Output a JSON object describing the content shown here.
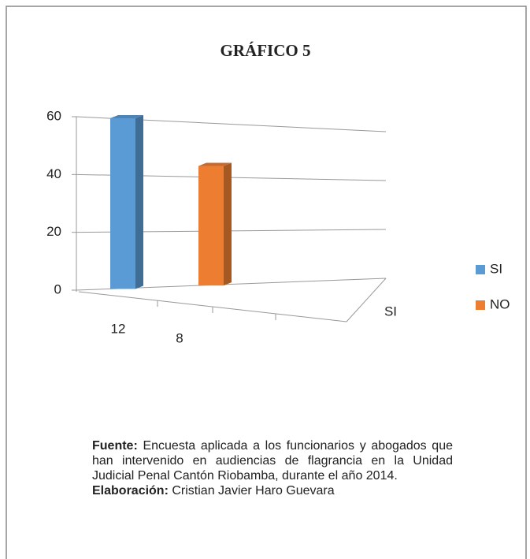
{
  "chart_data": {
    "type": "bar3d",
    "title": "GRÁFICO 5",
    "categories": [
      "12",
      "8"
    ],
    "depth_label": "SI",
    "series": [
      {
        "name": "SI",
        "color": "#5b9bd5",
        "values": [
          60,
          null
        ]
      },
      {
        "name": "NO",
        "color": "#ed7d31",
        "values": [
          null,
          44
        ]
      }
    ],
    "ylim": [
      0,
      60
    ],
    "yticks": [
      0,
      20,
      40,
      60
    ],
    "grid": true,
    "legend": "right"
  },
  "notes": {
    "source_label": "Fuente:",
    "source_text": "Encuesta aplicada a los funcionarios y abogados que han intervenido en audiencias de flagrancia en la Unidad Judicial Penal Cantón Riobamba, durante el año 2014.",
    "author_label": "Elaboración:",
    "author_text": "Cristian Javier Haro Guevara"
  }
}
